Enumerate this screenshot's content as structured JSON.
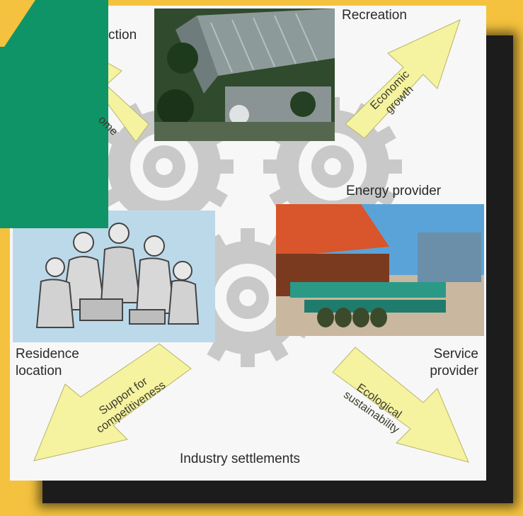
{
  "diagram": {
    "labels": {
      "top_left": "ction",
      "top_right": "Recreation",
      "energy": "Energy provider",
      "residence": "Residence\nlocation",
      "service": "Service\nprovider",
      "bottom": "Industry settlements"
    },
    "arrows": {
      "income": "ome",
      "economic": "Economic\ngrowth",
      "support": "Support for\ncompetitiveness",
      "ecological": "Ecological\nsustainability"
    }
  },
  "colors": {
    "background": "#f4c23e",
    "green_overlay": "#0f9468",
    "panel": "#f7f7f7",
    "shadow": "#1a1a1a",
    "arrow_fill": "#f5f2a0",
    "gear": "#c9c9c9"
  },
  "icons": {
    "gears": "gear-icon",
    "people": "people-group-illustration",
    "building": "industrial-building-photo",
    "facility": "industrial-facility-photo"
  }
}
